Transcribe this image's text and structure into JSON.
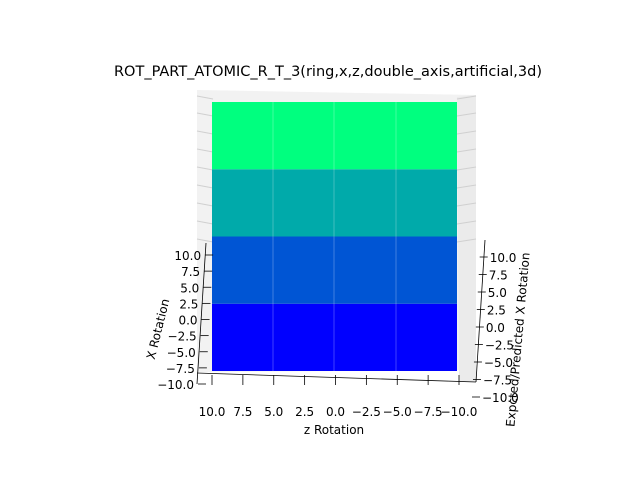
{
  "chart_data": {
    "type": "surface3d",
    "title": "ROT_PART_ATOMIC_R_T_3(ring,x,z,double_axis,artificial,3d)",
    "xlabel": "z Rotation",
    "ylabel": "X Rotation",
    "zlabel": "Expcted/Predicted X Rotation",
    "z_rotation_ticks": [
      "10.0",
      "7.5",
      "5.0",
      "2.5",
      "0.0",
      "−2.5",
      "−5.0",
      "−7.5",
      "−10.0"
    ],
    "x_rotation_ticks": [
      "−10.0",
      "−7.5",
      "−5.0",
      "−2.5",
      "0.0",
      "2.5",
      "5.0",
      "7.5",
      "10.0"
    ],
    "predicted_ticks": [
      "−10.0",
      "−7.5",
      "−5.0",
      "−2.5",
      "0.0",
      "2.5",
      "5.0",
      "7.5",
      "10.0"
    ],
    "xlim": [
      10,
      -10
    ],
    "ylim": [
      -10,
      10
    ],
    "zlim": [
      -10,
      10
    ],
    "bands": [
      {
        "x_rotation_range": [
          -7.5,
          -2.5
        ],
        "color": "#0000ff"
      },
      {
        "x_rotation_range": [
          -2.5,
          2.5
        ],
        "color": "#0055d4"
      },
      {
        "x_rotation_range": [
          2.5,
          7.5
        ],
        "color": "#00aaaa"
      },
      {
        "x_rotation_range": [
          7.5,
          12.5
        ],
        "color": "#00ff7f"
      }
    ],
    "grid": true
  }
}
